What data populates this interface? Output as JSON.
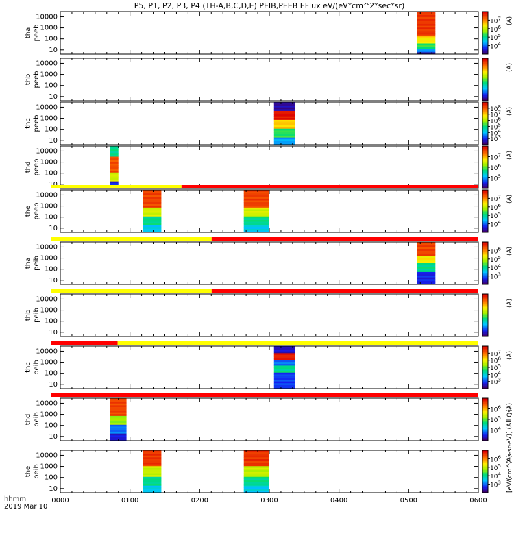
{
  "chart_data": {
    "type": "heatmap",
    "title": "P5, P1, P2, P3, P4 (TH-A,B,C,D,E) PEIB,PEEB EFlux eV/(eV*cm^2*sec*sr)",
    "x_axis": {
      "label_line1": "hhmm",
      "label_line2": "2019 Mar 10",
      "range_hhmm": [
        "0000",
        "0600"
      ],
      "tick_labels": [
        "0000",
        "0100",
        "0200",
        "0300",
        "0400",
        "0500",
        "0600"
      ]
    },
    "y_tick_labels": [
      "10000",
      "1000",
      "100",
      "10"
    ],
    "panels": [
      {
        "label_line1": "tha",
        "label_line2": "peeb",
        "colorbar_ticks": [
          "10^7",
          "10^6",
          "10^5",
          "10^4"
        ],
        "colorbar_label": "(A)",
        "bursts": [
          {
            "start": "0507",
            "end": "0523",
            "profile": "tha_peeb"
          }
        ]
      },
      {
        "label_line1": "thb",
        "label_line2": "peeb",
        "colorbar_ticks": [],
        "colorbar_label": "(A)",
        "bursts": []
      },
      {
        "label_line1": "thc",
        "label_line2": "peeb",
        "colorbar_ticks": [
          "10^8",
          "10^7",
          "10^6",
          "10^5",
          "10^4",
          "10^3"
        ],
        "colorbar_label": "(A)",
        "bursts": [
          {
            "start": "0264",
            "end": "0282",
            "profile": "thc_peeb"
          }
        ]
      },
      {
        "label_line1": "thd",
        "label_line2": "peeb",
        "colorbar_ticks": [
          "10^7",
          "10^6",
          "10^5"
        ],
        "colorbar_label": "(A)",
        "bursts": [
          {
            "start": "0043",
            "end": "0050",
            "profile": "thd_peeb"
          }
        ]
      },
      {
        "label_line1": "the",
        "label_line2": "peeb",
        "colorbar_ticks": [
          "10^7",
          "10^6",
          "10^5",
          "10^4"
        ],
        "colorbar_label": "(A)",
        "bursts": [
          {
            "start": "0111",
            "end": "0127",
            "profile": "the_peeb"
          },
          {
            "start": "0238",
            "end": "0260",
            "profile": "the_peeb"
          }
        ],
        "mode_bar": [
          {
            "to": "0152",
            "color": "#ffff00"
          },
          {
            "to": "0600",
            "color": "#ff0000"
          }
        ]
      },
      {
        "label_line1": "tha",
        "label_line2": "peib",
        "colorbar_ticks": [
          "10^6",
          "10^5",
          "10^4",
          "10^3"
        ],
        "colorbar_label": "(A)",
        "bursts": [
          {
            "start": "0507",
            "end": "0523",
            "profile": "tha_peib"
          }
        ],
        "mode_bar": [
          {
            "to": "0218",
            "color": "#ffff00"
          },
          {
            "to": "0600",
            "color": "#ff0000"
          }
        ]
      },
      {
        "label_line1": "thb",
        "label_line2": "peib",
        "colorbar_ticks": [],
        "colorbar_label": "(A)",
        "bursts": [],
        "mode_bar": [
          {
            "to": "0218",
            "color": "#ffff00"
          },
          {
            "to": "0600",
            "color": "#ff0000"
          }
        ]
      },
      {
        "label_line1": "thc",
        "label_line2": "peib",
        "colorbar_ticks": [
          "10^7",
          "10^6",
          "10^5",
          "10^4",
          "10^3"
        ],
        "colorbar_label": "(A)",
        "bursts": [
          {
            "start": "0264",
            "end": "0282",
            "profile": "thc_peib"
          }
        ],
        "mode_bar": [
          {
            "to": "0057",
            "color": "#ff0000"
          },
          {
            "to": "0600",
            "color": "#ffff00"
          }
        ]
      },
      {
        "label_line1": "thd",
        "label_line2": "peib",
        "colorbar_ticks": [
          "10^6",
          "10^5",
          "10^4"
        ],
        "colorbar_label": "(A)",
        "bursts": [
          {
            "start": "0043",
            "end": "0057",
            "profile": "thd_peib"
          }
        ],
        "mode_bar": [
          {
            "to": "0600",
            "color": "#ff0000"
          }
        ]
      },
      {
        "label_line1": "the",
        "label_line2": "peib",
        "colorbar_ticks": [
          "10^6",
          "10^5",
          "10^4",
          "10^3"
        ],
        "colorbar_label": "(A)",
        "bursts": [
          {
            "start": "0111",
            "end": "0127",
            "profile": "the_peib"
          },
          {
            "start": "0238",
            "end": "0260",
            "profile": "the_peib"
          }
        ]
      }
    ],
    "colorbar_side_label": "[eV/(cm^2-s-sr-eV)] (All Qs)"
  }
}
